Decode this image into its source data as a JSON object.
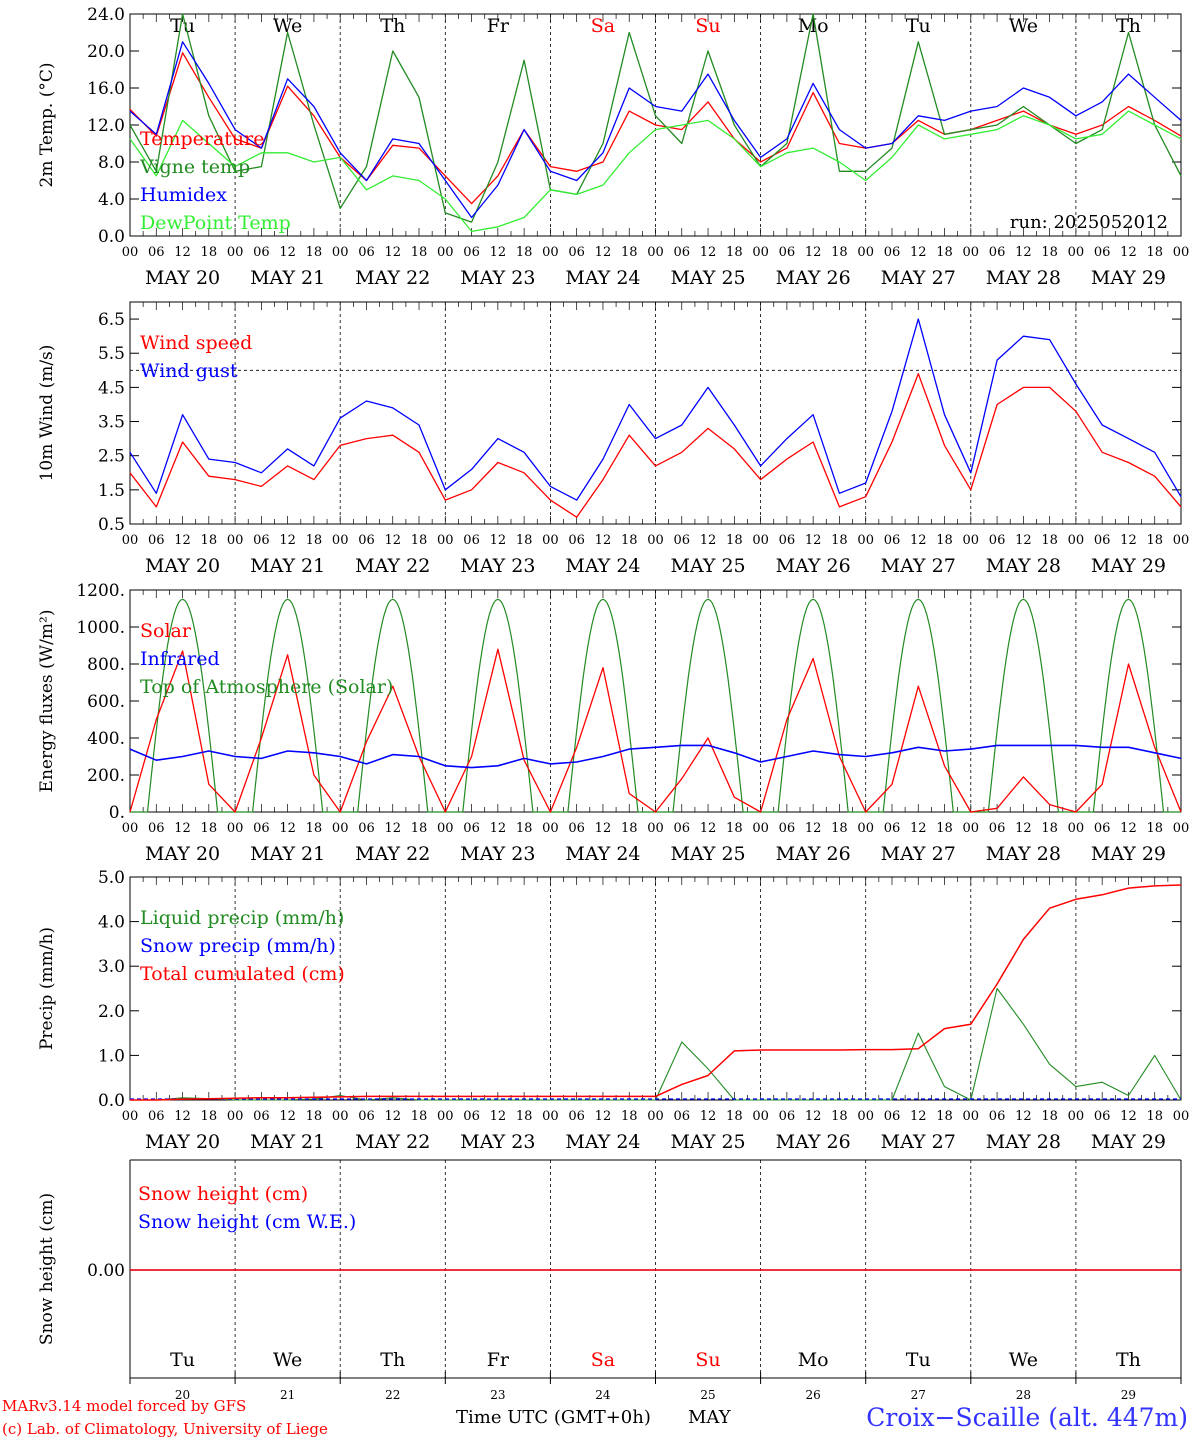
{
  "chart_data": [
    {
      "type": "line",
      "ylabel": "2m Temp. (°C)",
      "ylim": [
        0,
        24
      ],
      "yticks": [
        "0.0",
        "4.0",
        "8.0",
        "12.0",
        "16.0",
        "20.0",
        "24.0"
      ],
      "day_names": [
        "Tu",
        "We",
        "Th",
        "Fr",
        "Sa",
        "Su",
        "Mo",
        "Tu",
        "We",
        "Th"
      ],
      "weekend_color": "#ff0000",
      "run_label": "run: 2025052012",
      "x_hours": [
        0,
        6,
        12,
        18,
        24,
        30,
        36,
        42,
        48,
        54,
        60,
        66,
        72,
        78,
        84,
        90,
        96,
        102,
        108,
        114,
        120,
        126,
        132,
        138,
        144,
        150,
        156,
        162,
        168,
        174,
        180,
        186,
        192,
        198,
        204,
        210,
        216,
        222,
        228,
        234,
        240
      ],
      "series": [
        {
          "name": "Temperature",
          "color": "#ff0000",
          "values": [
            13.7,
            10.8,
            19.8,
            15.0,
            10.5,
            9.5,
            16.2,
            13.0,
            8.5,
            6.0,
            9.8,
            9.5,
            6.5,
            3.5,
            6.5,
            11.5,
            7.5,
            7.0,
            8.0,
            13.5,
            12.0,
            11.5,
            14.5,
            10.5,
            8.0,
            9.5,
            15.5,
            10.0,
            9.5,
            10.0,
            12.5,
            11.0,
            11.5,
            12.5,
            13.5,
            12.0,
            11.0,
            12.0,
            14.0,
            12.5,
            10.8
          ]
        },
        {
          "name": "Vigne temp",
          "color": "#228b22",
          "values": [
            12.0,
            7.0,
            24.0,
            13.0,
            7.0,
            7.5,
            22.0,
            12.0,
            3.0,
            7.5,
            20.0,
            15.0,
            2.5,
            1.5,
            8.0,
            19.0,
            5.0,
            4.5,
            10.0,
            22.0,
            13.0,
            10.0,
            20.0,
            12.0,
            7.5,
            10.0,
            24.0,
            7.0,
            7.0,
            9.5,
            21.0,
            11.0,
            11.5,
            12.0,
            14.0,
            12.0,
            10.0,
            11.5,
            22.0,
            12.0,
            6.5
          ]
        },
        {
          "name": "Humidex",
          "color": "#0000ff",
          "values": [
            13.5,
            11.0,
            21.0,
            16.5,
            11.5,
            9.5,
            17.0,
            14.0,
            9.0,
            6.0,
            10.5,
            10.0,
            6.0,
            2.0,
            5.5,
            11.5,
            7.0,
            6.0,
            9.0,
            16.0,
            14.0,
            13.5,
            17.5,
            12.5,
            8.5,
            10.5,
            16.5,
            11.5,
            9.5,
            10.0,
            13.0,
            12.5,
            13.5,
            14.0,
            16.0,
            15.0,
            13.0,
            14.5,
            17.5,
            15.0,
            12.5
          ]
        },
        {
          "name": "DewPoint Temp",
          "color": "#33ee33",
          "values": [
            10.5,
            6.5,
            12.5,
            10.0,
            7.5,
            9.0,
            9.0,
            8.0,
            8.5,
            5.0,
            6.5,
            6.0,
            4.0,
            0.5,
            1.0,
            2.0,
            5.0,
            4.5,
            5.5,
            9.0,
            11.5,
            12.0,
            12.5,
            10.5,
            7.5,
            9.0,
            9.5,
            8.0,
            6.0,
            8.5,
            12.0,
            10.5,
            11.0,
            11.5,
            13.0,
            12.0,
            10.5,
            11.0,
            13.5,
            12.0,
            10.5
          ]
        }
      ]
    },
    {
      "type": "line",
      "ylabel": "10m Wind (m/s)",
      "ylim": [
        0.5,
        7.0
      ],
      "yticks": [
        "0.5",
        "1.5",
        "2.5",
        "3.5",
        "4.5",
        "5.5",
        "6.5"
      ],
      "reference_line": 5,
      "x_hours": [
        0,
        6,
        12,
        18,
        24,
        30,
        36,
        42,
        48,
        54,
        60,
        66,
        72,
        78,
        84,
        90,
        96,
        102,
        108,
        114,
        120,
        126,
        132,
        138,
        144,
        150,
        156,
        162,
        168,
        174,
        180,
        186,
        192,
        198,
        204,
        210,
        216,
        222,
        228,
        234,
        240
      ],
      "series": [
        {
          "name": "Wind speed",
          "color": "#ff0000",
          "values": [
            2.0,
            1.0,
            2.9,
            1.9,
            1.8,
            1.6,
            2.2,
            1.8,
            2.8,
            3.0,
            3.1,
            2.6,
            1.2,
            1.5,
            2.3,
            2.0,
            1.2,
            0.7,
            1.8,
            3.1,
            2.2,
            2.6,
            3.3,
            2.7,
            1.8,
            2.4,
            2.9,
            1.0,
            1.3,
            2.9,
            4.9,
            2.8,
            1.5,
            4.0,
            4.5,
            4.5,
            3.8,
            2.6,
            2.3,
            1.9,
            1.0
          ]
        },
        {
          "name": "Wind gust",
          "color": "#0000ff",
          "values": [
            2.6,
            1.4,
            3.7,
            2.4,
            2.3,
            2.0,
            2.7,
            2.2,
            3.6,
            4.1,
            3.9,
            3.4,
            1.5,
            2.1,
            3.0,
            2.6,
            1.6,
            1.2,
            2.4,
            4.0,
            3.0,
            3.4,
            4.5,
            3.4,
            2.2,
            3.0,
            3.7,
            1.4,
            1.7,
            3.8,
            6.5,
            3.7,
            2.0,
            5.3,
            6.0,
            5.9,
            4.6,
            3.4,
            3.0,
            2.6,
            1.3
          ]
        }
      ]
    },
    {
      "type": "line",
      "ylabel": "Energy fluxes (W/m²)",
      "ylim": [
        0,
        1200
      ],
      "yticks": [
        "0.",
        "200.",
        "400.",
        "600.",
        "800.",
        "1000.",
        "1200."
      ],
      "toa_peak": 1150,
      "daylight_hours": [
        4,
        20
      ],
      "x_hours": [
        0,
        6,
        12,
        18,
        24,
        30,
        36,
        42,
        48,
        54,
        60,
        66,
        72,
        78,
        84,
        90,
        96,
        102,
        108,
        114,
        120,
        126,
        132,
        138,
        144,
        150,
        156,
        162,
        168,
        174,
        180,
        186,
        192,
        198,
        204,
        210,
        216,
        222,
        228,
        234,
        240
      ],
      "series": [
        {
          "name": "Solar",
          "color": "#ff0000",
          "values": [
            0,
            500,
            870,
            150,
            0,
            400,
            850,
            200,
            0,
            380,
            680,
            300,
            0,
            300,
            880,
            280,
            0,
            350,
            780,
            100,
            0,
            180,
            400,
            80,
            0,
            500,
            830,
            300,
            0,
            150,
            680,
            250,
            0,
            20,
            190,
            40,
            0,
            150,
            800,
            350,
            0
          ]
        },
        {
          "name": "Infrared",
          "color": "#0000ff",
          "values": [
            340,
            280,
            300,
            330,
            300,
            290,
            330,
            320,
            300,
            260,
            310,
            300,
            250,
            240,
            250,
            290,
            260,
            270,
            300,
            340,
            350,
            360,
            360,
            320,
            270,
            300,
            330,
            310,
            300,
            320,
            350,
            330,
            340,
            360,
            360,
            360,
            360,
            350,
            350,
            320,
            290
          ]
        },
        {
          "name": "Top of Atmosphere (Solar)",
          "color": "#228b22",
          "values": []
        }
      ]
    },
    {
      "type": "line",
      "ylabel": "Precip (mm/h)",
      "ylim": [
        0,
        5
      ],
      "yticks": [
        "0.0",
        "1.0",
        "2.0",
        "3.0",
        "4.0",
        "5.0"
      ],
      "x_hours": [
        0,
        6,
        12,
        18,
        24,
        30,
        36,
        42,
        48,
        54,
        60,
        66,
        72,
        78,
        84,
        90,
        96,
        102,
        108,
        114,
        120,
        126,
        132,
        138,
        144,
        150,
        156,
        162,
        168,
        174,
        180,
        186,
        192,
        198,
        204,
        210,
        216,
        222,
        228,
        234,
        240
      ],
      "series": [
        {
          "name": "Liquid precip (mm/h)",
          "color": "#228b22",
          "values": [
            0,
            0,
            0.05,
            0.03,
            0,
            0,
            0,
            0.02,
            0.1,
            0,
            0.05,
            0,
            0,
            0,
            0,
            0,
            0,
            0,
            0,
            0,
            0,
            1.3,
            0.7,
            0,
            0,
            0,
            0,
            0,
            0,
            0,
            1.5,
            0.3,
            0,
            2.5,
            1.7,
            0.8,
            0.3,
            0.4,
            0.1,
            1.0,
            0
          ]
        },
        {
          "name": "Snow precip (mm/h)",
          "color": "#0000ff",
          "values": [
            0,
            0,
            0,
            0,
            0,
            0,
            0,
            0,
            0,
            0,
            0,
            0,
            0,
            0,
            0,
            0,
            0,
            0,
            0,
            0,
            0,
            0,
            0,
            0,
            0,
            0,
            0,
            0,
            0,
            0,
            0,
            0,
            0,
            0,
            0,
            0,
            0,
            0,
            0,
            0,
            0
          ]
        },
        {
          "name": "Total cumulated (cm)",
          "color": "#ff0000",
          "values": [
            0,
            0,
            0.02,
            0.03,
            0.04,
            0.05,
            0.05,
            0.06,
            0.07,
            0.08,
            0.08,
            0.08,
            0.08,
            0.08,
            0.08,
            0.08,
            0.08,
            0.08,
            0.08,
            0.08,
            0.08,
            0.35,
            0.55,
            1.1,
            1.12,
            1.12,
            1.12,
            1.12,
            1.13,
            1.13,
            1.15,
            1.6,
            1.7,
            2.6,
            3.6,
            4.3,
            4.5,
            4.6,
            4.75,
            4.8,
            4.82
          ]
        }
      ]
    },
    {
      "type": "line",
      "ylabel": "Snow height (cm)",
      "yticks": [
        "0.00"
      ],
      "series": [
        {
          "name": "Snow height (cm)",
          "color": "#ff0000",
          "values": [
            0
          ]
        },
        {
          "name": "Snow height (cm W.E.)",
          "color": "#0000ff",
          "values": [
            0
          ]
        }
      ]
    }
  ],
  "x_axis": {
    "hour_labels": [
      "00",
      "06",
      "12",
      "18"
    ],
    "final_hour_label": "00",
    "date_labels": [
      "MAY 20",
      "MAY 21",
      "MAY 22",
      "MAY 23",
      "MAY 24",
      "MAY 25",
      "MAY 26",
      "MAY 27",
      "MAY 28",
      "MAY 29"
    ],
    "bottom_day_numbers": [
      "20",
      "21",
      "22",
      "23",
      "24",
      "25",
      "26",
      "27",
      "28",
      "29"
    ],
    "bottom_day_names": [
      "Tu",
      "We",
      "Th",
      "Fr",
      "Sa",
      "Su",
      "Mo",
      "Tu",
      "We",
      "Th"
    ],
    "weekend_days": [
      "Sa",
      "Su"
    ]
  },
  "footer": {
    "credit_line1": "MARv3.14 model forced by GFS",
    "credit_line2": "(c) Lab. of Climatology, University of Liege",
    "xlabel": "Time UTC (GMT+0h)",
    "month": "MAY",
    "station": "Croix−Scaille (alt. 447m)"
  }
}
